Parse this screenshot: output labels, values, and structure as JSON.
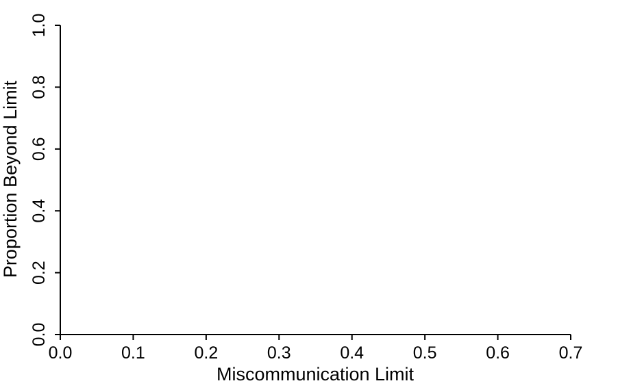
{
  "chart_data": {
    "type": "line",
    "title": "",
    "xlabel": "Miscommunication Limit",
    "ylabel": "Proportion Beyond Limit",
    "xlim": [
      0.0,
      0.7
    ],
    "ylim": [
      0.0,
      1.0
    ],
    "xticks": [
      "0.0",
      "0.1",
      "0.2",
      "0.3",
      "0.4",
      "0.5",
      "0.6",
      "0.7"
    ],
    "yticks": [
      "0.0",
      "0.2",
      "0.4",
      "0.6",
      "0.8",
      "1.0"
    ],
    "grid": false,
    "series": []
  }
}
